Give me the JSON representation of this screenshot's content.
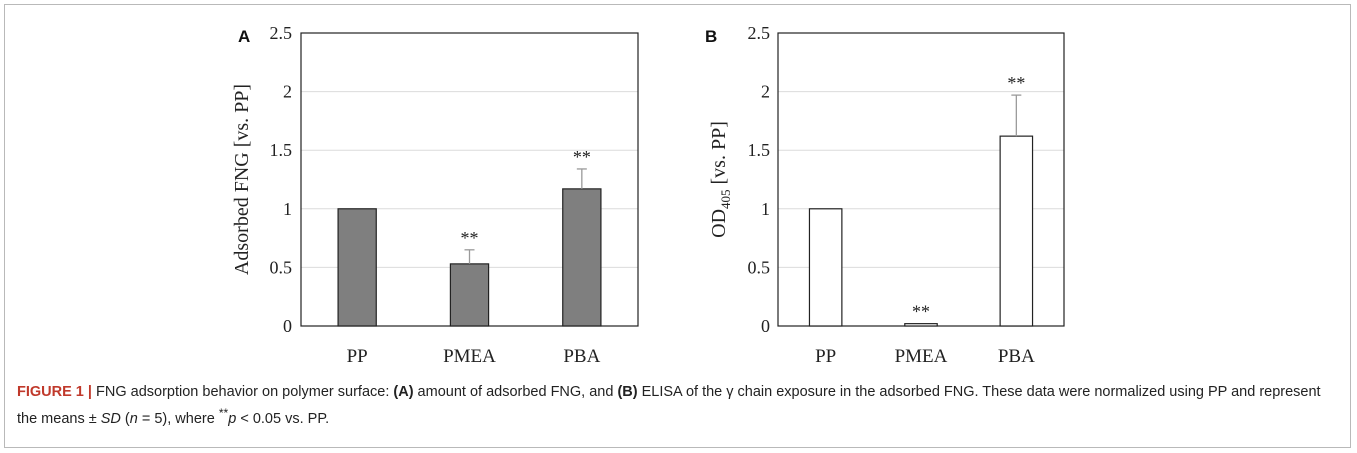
{
  "figure": {
    "caption_label": "FIGURE 1 |",
    "caption_parts": {
      "p1": " FNG adsorption behavior on polymer surface: ",
      "a": "(A)",
      "p2": " amount of adsorbed FNG, and ",
      "b": "(B)",
      "p3": " ELISA of the γ chain exposure in the adsorbed FNG. These data were normalized using PP and represent the means ± ",
      "sd": "SD",
      "p4": " (",
      "n": "n",
      "p5": " = 5), where ",
      "sig": "**",
      "p": "p",
      "p6": " < 0.05 vs. PP."
    }
  },
  "chart_data": [
    {
      "panel_label": "A",
      "type": "bar",
      "categories": [
        "PP",
        "PMEA",
        "PBA"
      ],
      "series": [
        {
          "values": [
            1.0,
            0.53,
            1.17
          ],
          "errors": [
            0,
            0.12,
            0.17
          ],
          "color": "#7f7f7f"
        }
      ],
      "significance": [
        "",
        "**",
        "**"
      ],
      "ylabel": "Adsorbed FNG [vs. PP]",
      "ylim": [
        0,
        2.5
      ],
      "yticks": [
        "0",
        "0.5",
        "1",
        "1.5",
        "2",
        "2.5"
      ],
      "grid": true
    },
    {
      "panel_label": "B",
      "type": "bar",
      "categories": [
        "PP",
        "PMEA",
        "PBA"
      ],
      "series": [
        {
          "values": [
            1.0,
            0.02,
            1.62
          ],
          "errors": [
            0,
            0.0,
            0.35
          ],
          "color": "#ffffff"
        }
      ],
      "significance": [
        "",
        "**",
        "**"
      ],
      "ylabel_main": "OD",
      "ylabel_sub": "405",
      "ylabel_rest": " [vs. PP]",
      "ylim": [
        0,
        2.5
      ],
      "yticks": [
        "0",
        "0.5",
        "1",
        "1.5",
        "2",
        "2.5"
      ],
      "grid": true
    }
  ]
}
